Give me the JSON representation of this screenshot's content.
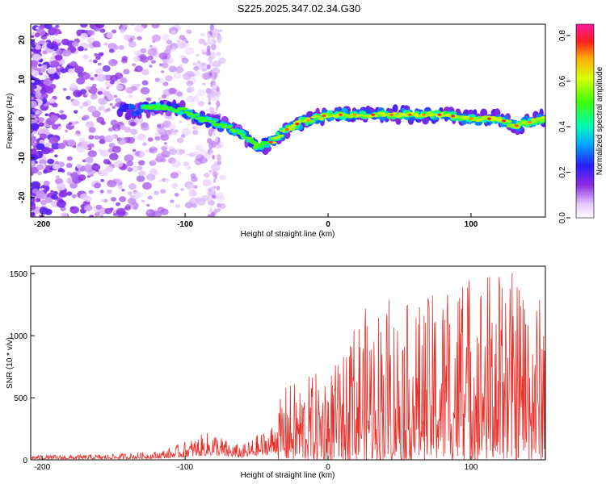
{
  "title": "S225.2025.347.02.34.G30",
  "chart_data": [
    {
      "type": "heatmap",
      "title": "S225.2025.347.02.34.G30",
      "xlabel": "Height of straight line (km)",
      "ylabel": "Frequency (Hz)",
      "xlim": [
        -208,
        152
      ],
      "ylim": [
        -25,
        24
      ],
      "xticks": [
        -200,
        -100,
        0,
        100
      ],
      "yticks": [
        -20,
        -10,
        0,
        10,
        20
      ],
      "colorbar": {
        "label": "Normalized spectral amplitude",
        "range": [
          0,
          0.85
        ],
        "ticks": [
          0.0,
          0.2,
          0.4,
          0.6,
          0.8
        ],
        "tick_labels": [
          "0.0",
          "0.2",
          "0.4",
          "0.6",
          "0.8"
        ]
      },
      "ridge": {
        "x": [
          -140,
          -120,
          -100,
          -90,
          -80,
          -70,
          -60,
          -50,
          -40,
          -30,
          -20,
          -10,
          0,
          20,
          40,
          60,
          80,
          100,
          120,
          130,
          150
        ],
        "freq": [
          2,
          3,
          2,
          0,
          -1,
          -2,
          -4,
          -7,
          -6,
          -3,
          -1,
          0,
          1,
          1,
          1,
          1,
          1,
          0,
          0,
          -2,
          0
        ]
      }
    },
    {
      "type": "line",
      "xlabel": "Height of straight line (km)",
      "ylabel": "SNR (10 * v/v)",
      "xlim": [
        -208,
        152
      ],
      "ylim": [
        0,
        1560
      ],
      "xticks": [
        -200,
        -100,
        0,
        100
      ],
      "yticks": [
        0,
        500,
        1000,
        1500
      ],
      "color": "#e8302a",
      "envelope": {
        "x": [
          -208,
          -180,
          -160,
          -140,
          -120,
          -110,
          -100,
          -90,
          -80,
          -70,
          -60,
          -50,
          -40,
          -30,
          -20,
          -10,
          0,
          10,
          20,
          30,
          40,
          60,
          80,
          100,
          120,
          140,
          150
        ],
        "peak": [
          40,
          40,
          45,
          55,
          70,
          100,
          150,
          200,
          240,
          150,
          120,
          200,
          280,
          600,
          650,
          700,
          750,
          800,
          1200,
          1250,
          1300,
          1250,
          1400,
          1550,
          1560,
          1500,
          1300
        ]
      }
    }
  ]
}
